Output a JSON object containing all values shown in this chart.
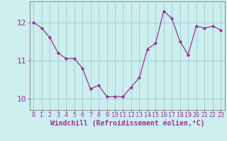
{
  "x": [
    0,
    1,
    2,
    3,
    4,
    5,
    6,
    7,
    8,
    9,
    10,
    11,
    12,
    13,
    14,
    15,
    16,
    17,
    18,
    19,
    20,
    21,
    22,
    23
  ],
  "y": [
    12.0,
    11.85,
    11.6,
    11.2,
    11.05,
    11.05,
    10.8,
    10.25,
    10.35,
    10.05,
    10.05,
    10.05,
    10.3,
    10.55,
    11.3,
    11.45,
    12.3,
    12.1,
    11.5,
    11.15,
    11.9,
    11.85,
    11.9,
    11.8
  ],
  "line_color": "#993399",
  "marker_color": "#993399",
  "bg_color": "#cceeee",
  "grid_color": "#99cccc",
  "xlabel": "Windchill (Refroidissement éolien,°C)",
  "xlim": [
    -0.5,
    23.5
  ],
  "ylim": [
    9.7,
    12.55
  ],
  "yticks": [
    10,
    11,
    12
  ],
  "xticks": [
    0,
    1,
    2,
    3,
    4,
    5,
    6,
    7,
    8,
    9,
    10,
    11,
    12,
    13,
    14,
    15,
    16,
    17,
    18,
    19,
    20,
    21,
    22,
    23
  ],
  "tick_color": "#993399",
  "axis_color": "#993399",
  "xlabel_fontsize": 7.0,
  "ytick_fontsize": 8.0,
  "xtick_fontsize": 6.0,
  "spine_color": "#888888"
}
